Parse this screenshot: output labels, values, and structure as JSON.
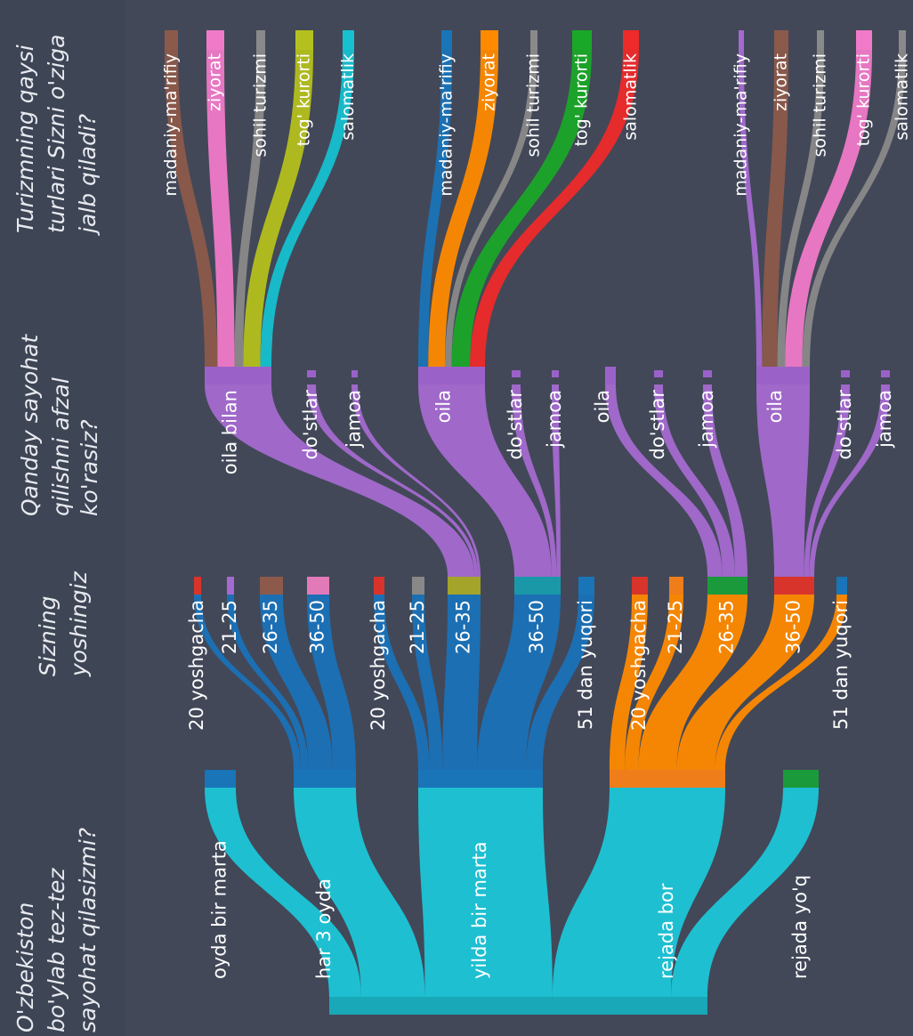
{
  "headers": [
    [
      "O'zbekiston",
      "bo'ylab tez-tez",
      "sayohat qilasizmi?"
    ],
    [
      "Sizning",
      "yoshingiz"
    ],
    [
      "Qanday sayohat",
      "qilishni afzal",
      "ko'rasiz?"
    ],
    [
      "Turizmning  qaysi",
      "turlari Sizni o'ziga",
      "jalb qiladi?"
    ]
  ],
  "frequency": [
    "oyda bir marta",
    "har 3 oyda",
    "yilda bir marta",
    "rejada bor",
    "rejada yo'q"
  ],
  "age_groups": [
    [
      "20 yoshgacha",
      "21-25",
      "26-35",
      "36-50"
    ],
    [
      "20 yoshgacha",
      "21-25",
      "26-35",
      "36-50",
      "51 dan yuqori"
    ],
    [
      "20 yoshgacha",
      "21-25",
      "26-35",
      "36-50",
      "51 dan yuqori"
    ]
  ],
  "companion_groups": [
    [
      "oila bilan",
      "do'stlar",
      "jamoa"
    ],
    [
      "oila",
      "do'stlar",
      "jamoa"
    ],
    [
      "oila",
      "do'stlar",
      "jamoa"
    ],
    [
      "oila",
      "do'stlar",
      "jamoa"
    ]
  ],
  "tourism_groups": [
    [
      "madaniy-ma'rifiy",
      "ziyorat",
      "sohil turizmi",
      "tog' kurorti",
      "salomatlik"
    ],
    [
      "madaniy-ma'rifiy",
      "ziyorat",
      "sohil turizmi",
      "tog' kurorti",
      "salomatlik"
    ],
    [
      "madaniy-ma'rifiy",
      "ziyorat",
      "sohil turizmi",
      "tog' kurorti",
      "salomatlik"
    ]
  ]
}
